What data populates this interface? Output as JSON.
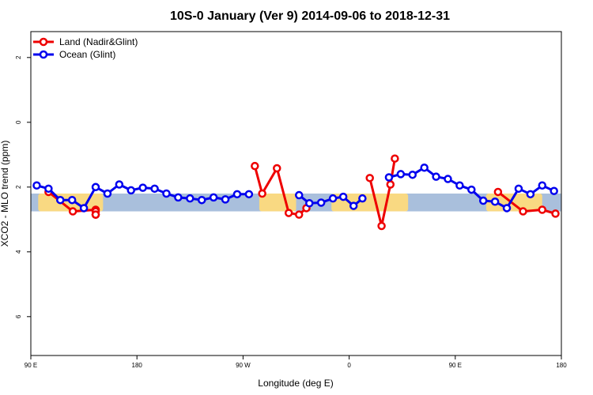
{
  "chart_data": {
    "type": "line",
    "title": "10S-0 January (Ver 9)   2014-09-06 to 2018-12-31",
    "xlabel": "Longitude (deg E)",
    "ylabel": "XCO2 - MLO trend (ppm)",
    "xlim": [
      90,
      450
    ],
    "ylim": [
      -7.2,
      2.8
    ],
    "x_ticks": [
      {
        "value": 90,
        "label": "90 E"
      },
      {
        "value": 162,
        "label": "180"
      },
      {
        "value": 234,
        "label": "90 W"
      },
      {
        "value": 306,
        "label": "0"
      },
      {
        "value": 378,
        "label": "90 E"
      },
      {
        "value": 450,
        "label": "180"
      }
    ],
    "y_ticks": [
      {
        "value": 2,
        "label": "2"
      },
      {
        "value": 0,
        "label": "0"
      },
      {
        "value": -2,
        "label": "2"
      },
      {
        "value": -4,
        "label": "4"
      },
      {
        "value": -6,
        "label": "6"
      }
    ],
    "band": {
      "y_min": -2.75,
      "y_max": -2.2,
      "color": "#a9bfdc",
      "land_color": "#f9d982"
    },
    "land_patches": [
      {
        "x0": 95,
        "x1": 139
      },
      {
        "x0": 245,
        "x1": 270
      },
      {
        "x0": 294,
        "x1": 346
      },
      {
        "x0": 399,
        "x1": 437
      }
    ],
    "legend": {
      "position": "top-left",
      "entries": [
        {
          "label": "Land (Nadir&Glint)",
          "color": "#ee0000"
        },
        {
          "label": "Ocean (Glint)",
          "color": "#0000ee"
        }
      ]
    },
    "series": [
      {
        "name": "Land (Nadir&Glint)",
        "color": "#ee0000",
        "segments": [
          [
            [
              102,
              -2.15
            ],
            [
              118.5,
              -2.75
            ],
            [
              134,
              -2.7
            ],
            [
              134,
              -2.75
            ],
            [
              134,
              -2.85
            ],
            [
              134,
              -2.85
            ],
            [
              134,
              -2.85
            ]
          ],
          [
            [
              242,
              -1.35
            ],
            [
              247,
              -2.2
            ],
            [
              257,
              -1.42
            ],
            [
              265,
              -2.8
            ],
            [
              272,
              -2.85
            ],
            [
              277,
              -2.65
            ]
          ],
          [
            [
              320,
              -1.72
            ],
            [
              328,
              -3.2
            ],
            [
              334,
              -1.92
            ],
            [
              337,
              -1.12
            ]
          ],
          [
            [
              407,
              -2.15
            ],
            [
              424,
              -2.75
            ],
            [
              437,
              -2.7
            ],
            [
              446,
              -2.82
            ]
          ]
        ]
      },
      {
        "name": "Ocean (Glint)",
        "color": "#0000ee",
        "segments": [
          [
            [
              94,
              -1.95
            ],
            [
              102,
              -2.05
            ],
            [
              110,
              -2.4
            ],
            [
              118,
              -2.4
            ],
            [
              126,
              -2.65
            ],
            [
              134,
              -2.0
            ],
            [
              142,
              -2.2
            ],
            [
              150,
              -1.92
            ],
            [
              158,
              -2.1
            ],
            [
              166,
              -2.02
            ],
            [
              174,
              -2.05
            ],
            [
              182,
              -2.2
            ],
            [
              190,
              -2.32
            ],
            [
              198,
              -2.35
            ],
            [
              206,
              -2.4
            ],
            [
              214,
              -2.32
            ],
            [
              222,
              -2.38
            ],
            [
              230,
              -2.22
            ],
            [
              238,
              -2.22
            ]
          ],
          [
            [
              272,
              -2.25
            ],
            [
              279,
              -2.5
            ],
            [
              287,
              -2.48
            ],
            [
              295,
              -2.35
            ],
            [
              302,
              -2.3
            ],
            [
              309,
              -2.58
            ],
            [
              315,
              -2.35
            ]
          ],
          [
            [
              333,
              -1.7
            ],
            [
              341,
              -1.6
            ],
            [
              349,
              -1.62
            ],
            [
              357,
              -1.4
            ],
            [
              365,
              -1.68
            ],
            [
              373,
              -1.75
            ],
            [
              381,
              -1.95
            ],
            [
              389,
              -2.08
            ],
            [
              397,
              -2.42
            ],
            [
              405,
              -2.45
            ],
            [
              413,
              -2.65
            ],
            [
              421,
              -2.05
            ],
            [
              429,
              -2.22
            ],
            [
              437,
              -1.95
            ],
            [
              445,
              -2.12
            ]
          ]
        ]
      }
    ]
  }
}
